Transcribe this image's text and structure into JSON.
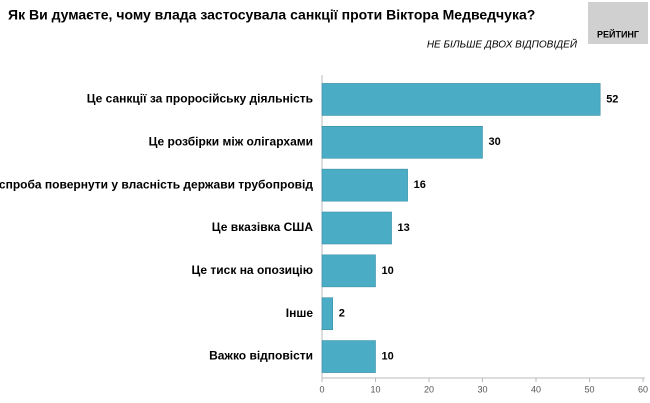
{
  "chart_data": {
    "type": "bar",
    "orientation": "horizontal",
    "title": "Як Ви думаєте, чому влада застосувала санкції проти Віктора Медведчука?",
    "subtitle": "НЕ БІЛЬШЕ ДВОХ ВІДПОВІДЕЙ",
    "logo": "РЕЙТИНГ",
    "categories": [
      "Це санкції за проросійську діяльність",
      "Це розбірки між олігархами",
      "Це спроба повернути у власність держави трубопровід",
      "Це вказівка США",
      "Це тиск на опозицію",
      "Інше",
      "Важко відповісти"
    ],
    "values": [
      52,
      30,
      16,
      13,
      10,
      2,
      10
    ],
    "color": "#4bacc6",
    "xlim": [
      0,
      60
    ],
    "xticks": [
      0,
      10,
      20,
      30,
      40,
      50,
      60
    ],
    "grid": false
  }
}
